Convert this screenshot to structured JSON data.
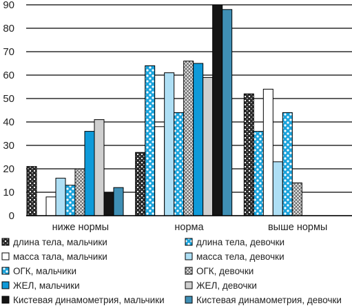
{
  "chart_data": {
    "type": "bar",
    "categories": [
      "ниже нормы",
      "норма",
      "выше нормы"
    ],
    "ylim": [
      0,
      90
    ],
    "yticks": [
      0,
      10,
      20,
      30,
      40,
      50,
      60,
      70,
      80,
      90
    ],
    "grid": true,
    "legend_position": "bottom, two columns",
    "series": [
      {
        "name": "длина тела, мальчики",
        "values": [
          21,
          27,
          52
        ],
        "pattern": "dark-checker"
      },
      {
        "name": "длина тела, девочки",
        "values": [
          0,
          64,
          36
        ],
        "pattern": "blue-dots"
      },
      {
        "name": "масса тала, мальчики",
        "values": [
          8,
          38,
          54
        ],
        "pattern": "white"
      },
      {
        "name": "масса тела, девочки",
        "values": [
          16,
          61,
          23
        ],
        "pattern": "light-blue"
      },
      {
        "name": "ОГК, мальчики",
        "values": [
          13,
          44,
          44
        ],
        "pattern": "blue-dots"
      },
      {
        "name": "ОГК, девочки",
        "values": [
          20,
          66,
          14
        ],
        "pattern": "crosshatch"
      },
      {
        "name": "ЖЕЛ, мальчики",
        "values": [
          36,
          65,
          0
        ],
        "pattern": "blue"
      },
      {
        "name": "ЖЕЛ, девочки",
        "values": [
          41,
          59,
          0
        ],
        "pattern": "light-grey"
      },
      {
        "name": "Кистевая динамометрия, мальчики",
        "values": [
          10,
          90,
          0
        ],
        "pattern": "black"
      },
      {
        "name": "Кистевая динамометрия, девочки",
        "values": [
          12,
          88,
          0
        ],
        "pattern": "steel-blue"
      }
    ]
  }
}
